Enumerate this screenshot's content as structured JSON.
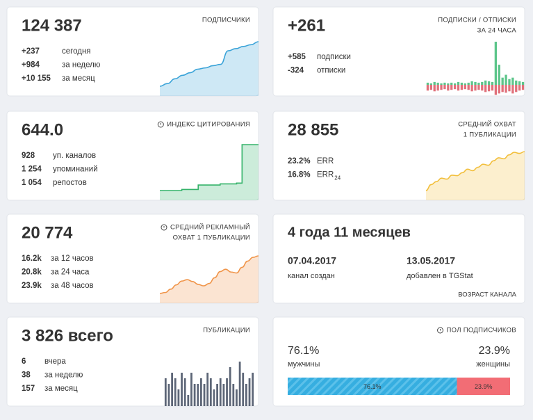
{
  "cards": [
    {
      "title": [
        "ПОДПИСЧИКИ"
      ],
      "value": "124 387",
      "rows": [
        {
          "value": "+237",
          "label": "сегодня",
          "color": "#2dbd8a"
        },
        {
          "value": "+984",
          "label": "за неделю",
          "color": "#2dbd8a"
        },
        {
          "value": "+10 155",
          "label": "за месяц",
          "color": "#2dbd8a"
        }
      ],
      "chart": {
        "type": "area",
        "color": "#3aa3d8",
        "values": [
          114200,
          114800,
          115900,
          116700,
          117300,
          118100,
          118400,
          118900,
          119200,
          122300,
          122800,
          123300,
          123700,
          124387
        ]
      }
    },
    {
      "title": [
        "ПОДПИСКИ / ОТПИСКИ",
        "ЗА 24 ЧАСА"
      ],
      "value": "+261",
      "rows": [
        {
          "value": "+585",
          "label": "подписки",
          "color": "#2dbd8a"
        },
        {
          "value": "-324",
          "label": "отписки",
          "color": "#e0505c"
        }
      ],
      "chart": {
        "type": "diverging-bars",
        "up_color": "#5cc58a",
        "down_color": "#e0707a",
        "up": [
          3,
          2,
          4,
          3,
          2,
          3,
          2,
          3,
          2,
          4,
          3,
          2,
          3,
          5,
          4,
          3,
          4,
          6,
          5,
          4,
          60,
          28,
          10,
          14,
          8,
          10,
          6,
          5,
          4
        ],
        "down": [
          8,
          7,
          9,
          8,
          7,
          6,
          8,
          7,
          6,
          8,
          7,
          6,
          7,
          9,
          8,
          7,
          8,
          10,
          9,
          8,
          14,
          12,
          10,
          11,
          9,
          12,
          10,
          8,
          7
        ]
      }
    },
    {
      "title": [
        "ИНДЕКС ЦИТИРОВАНИЯ"
      ],
      "info_icon": true,
      "value": "644.0",
      "rows": [
        {
          "value": "928",
          "label": "уп. каналов",
          "color": "#333333"
        },
        {
          "value": "1 254",
          "label": "упоминаний",
          "color": "#333333"
        },
        {
          "value": "1 054",
          "label": "репостов",
          "color": "#333333"
        }
      ],
      "chart": {
        "type": "step",
        "color": "#35b36a",
        "values": [
          520,
          520,
          520,
          520,
          523,
          523,
          523,
          535,
          535,
          535,
          535,
          538,
          538,
          538,
          540,
          644,
          644,
          644,
          644
        ]
      }
    },
    {
      "title": [
        "СРЕДНИЙ ОХВАТ",
        "1 ПУБЛИКАЦИИ"
      ],
      "value": "28 855",
      "rows": [
        {
          "value": "23.2%",
          "label": "ERR",
          "color": "#333333"
        },
        {
          "value": "16.8%",
          "label": "ERR",
          "sub": "24",
          "color": "#333333"
        }
      ],
      "chart": {
        "type": "area",
        "color": "#f2bf3c",
        "values": [
          21000,
          22200,
          22800,
          23500,
          23300,
          24100,
          24000,
          24600,
          25300,
          25000,
          25700,
          26300,
          26100,
          27000,
          27600,
          27400,
          28200,
          28700,
          28500,
          28855
        ]
      }
    },
    {
      "title": [
        "СРЕДНИЙ РЕКЛАМНЫЙ",
        "ОХВАТ 1 ПУБЛИКАЦИИ"
      ],
      "info_icon": true,
      "value": "20 774",
      "rows": [
        {
          "value": "16.2k",
          "label": "за 12 часов",
          "color": "#333333"
        },
        {
          "value": "20.8k",
          "label": "за 24 часа",
          "color": "#333333"
        },
        {
          "value": "23.9k",
          "label": "за 48 часов",
          "color": "#333333"
        }
      ],
      "chart": {
        "type": "area",
        "color": "#f0954a",
        "values": [
          16000,
          16200,
          16900,
          17800,
          18600,
          18900,
          18500,
          17900,
          17600,
          18100,
          19300,
          20600,
          21100,
          20500,
          20300,
          21500,
          22800,
          23600,
          23900
        ]
      }
    },
    {
      "value": "4 года 11 месяцев",
      "dates": [
        {
          "value": "07.04.2017",
          "label": "канал создан"
        },
        {
          "value": "13.05.2017",
          "label": "добавлен в TGStat"
        }
      ],
      "footer": "ВОЗРАСТ КАНАЛА"
    },
    {
      "title": [
        "ПУБЛИКАЦИИ"
      ],
      "value": "3 826 всего",
      "rows": [
        {
          "value": "6",
          "label": "вчера",
          "color": "#333333"
        },
        {
          "value": "38",
          "label": "за неделю",
          "color": "#333333"
        },
        {
          "value": "157",
          "label": "за месяц",
          "color": "#333333"
        }
      ],
      "chart": {
        "type": "bars",
        "color": "#5d6677",
        "values": [
          5,
          4,
          6,
          5,
          3,
          6,
          5,
          2,
          6,
          4,
          4,
          5,
          4,
          6,
          5,
          3,
          4,
          5,
          4,
          5,
          7,
          4,
          3,
          8,
          6,
          4,
          5,
          6
        ]
      }
    },
    {
      "title": [
        "ПОЛ ПОДПИСЧИКОВ"
      ],
      "info_icon": true,
      "shares": [
        {
          "value": 76.1,
          "label": "76.1%",
          "name": "мужчины",
          "color": "#36aee0"
        },
        {
          "value": 23.9,
          "label": "23.9%",
          "name": "женщины",
          "color": "#f26d75"
        }
      ]
    }
  ]
}
